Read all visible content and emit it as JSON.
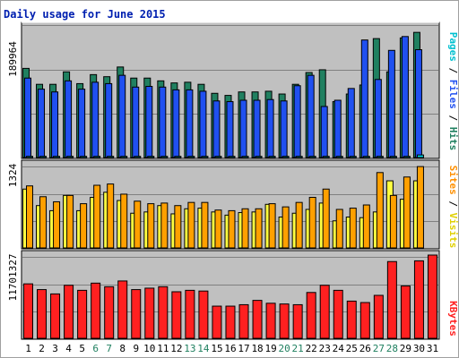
{
  "chart_data": [
    {
      "type": "bar",
      "title": "Daily usage for June 2015",
      "categories": [
        "1",
        "2",
        "3",
        "4",
        "5",
        "6",
        "7",
        "8",
        "9",
        "10",
        "11",
        "12",
        "13",
        "14",
        "15",
        "16",
        "17",
        "18",
        "19",
        "20",
        "21",
        "22",
        "23",
        "24",
        "25",
        "26",
        "27",
        "28",
        "29",
        "30",
        "31"
      ],
      "weekend_days": [
        "6",
        "7",
        "13",
        "14",
        "20",
        "21",
        "27",
        "28"
      ],
      "ylabel_value": "189964",
      "ylim": [
        0,
        189964
      ],
      "series": [
        {
          "name": "Pages",
          "color": "#00d0e0",
          "values": [
            3000,
            3000,
            3000,
            3000,
            3000,
            3000,
            3000,
            3000,
            3000,
            3000,
            3000,
            3000,
            3000,
            3000,
            3000,
            3000,
            3000,
            3000,
            3000,
            3000,
            3000,
            3000,
            3000,
            3000,
            3000,
            3000,
            3000,
            3000,
            3000,
            5000,
            null
          ]
        },
        {
          "name": "Files",
          "color": "#2050f0",
          "values": [
            116000,
            100000,
            96000,
            112000,
            100000,
            110000,
            108000,
            120000,
            103000,
            104000,
            103000,
            99000,
            99000,
            97000,
            83000,
            82000,
            84000,
            84000,
            85000,
            83000,
            105000,
            120000,
            75000,
            84000,
            101000,
            171000,
            114000,
            156000,
            176000,
            157000,
            null
          ]
        },
        {
          "name": "Hits",
          "color": "#208060",
          "values": [
            130000,
            107000,
            107000,
            125000,
            108000,
            121000,
            118000,
            132000,
            116000,
            116000,
            112000,
            109000,
            110000,
            107000,
            94000,
            91000,
            96000,
            96000,
            97000,
            93000,
            107000,
            124000,
            128000,
            82000,
            93000,
            106000,
            173000,
            125000,
            174000,
            182000,
            null
          ]
        }
      ],
      "ylabel_parts": [
        "Pages",
        "Files",
        "Hits"
      ]
    },
    {
      "type": "bar",
      "ylabel_value": "1324",
      "ylim": [
        0,
        1324
      ],
      "series": [
        {
          "name": "Visits",
          "color": "#ffff40",
          "values": [
            940,
            680,
            600,
            840,
            600,
            810,
            890,
            760,
            560,
            580,
            680,
            550,
            630,
            640,
            580,
            530,
            570,
            580,
            700,
            500,
            560,
            620,
            720,
            440,
            500,
            490,
            580,
            1070,
            780,
            1070,
            null
          ]
        },
        {
          "name": "Sites",
          "color": "#ffa000",
          "values": [
            990,
            820,
            740,
            840,
            710,
            1000,
            1020,
            860,
            750,
            710,
            720,
            680,
            730,
            730,
            610,
            600,
            630,
            630,
            710,
            660,
            730,
            810,
            940,
            620,
            640,
            690,
            1200,
            840,
            1130,
            1294,
            null
          ]
        }
      ],
      "ylabel_parts": [
        "Sites",
        "Visits"
      ]
    },
    {
      "type": "bar",
      "ylabel_value": "11701327",
      "ylim": [
        0,
        11701327
      ],
      "series": [
        {
          "name": "KBytes",
          "color": "#ff2020",
          "values": [
            7700000,
            6900000,
            6300000,
            7500000,
            6800000,
            7800000,
            7300000,
            8100000,
            6900000,
            7100000,
            7300000,
            6600000,
            6800000,
            6700000,
            4600000,
            4600000,
            4800000,
            5400000,
            5000000,
            4900000,
            4800000,
            6500000,
            7500000,
            6800000,
            5300000,
            5100000,
            6100000,
            10800000,
            7400000,
            10900000,
            11701327
          ]
        }
      ],
      "ylabel_parts": [
        "KBytes"
      ]
    }
  ]
}
